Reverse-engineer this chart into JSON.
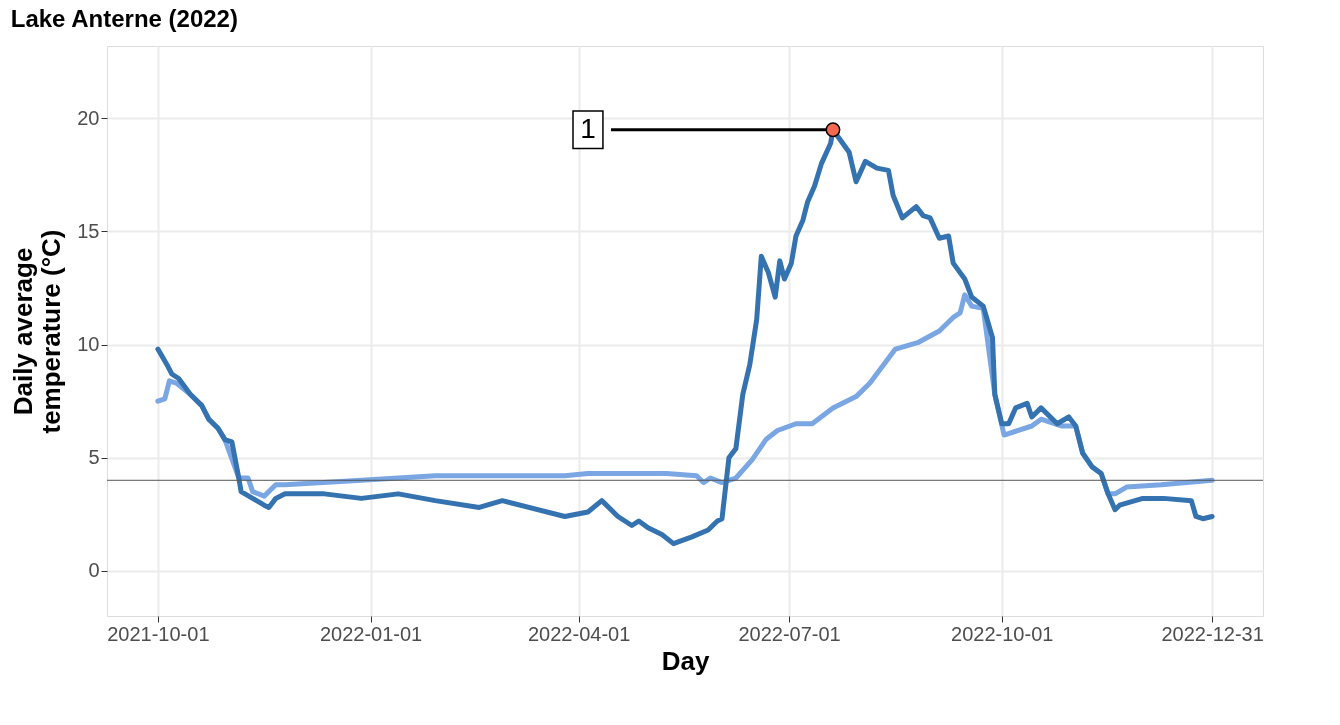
{
  "chart_data": {
    "type": "line",
    "title": "Lake Anterne (2022)",
    "xlabel": "Day",
    "ylabel": "Daily average\ntemperature (°C)",
    "xlim": [
      "2021-09-09",
      "2023-01-22"
    ],
    "xticks": [
      "2021-10-01",
      "2022-01-01",
      "2022-04-01",
      "2022-07-01",
      "2022-10-01",
      "2022-12-31"
    ],
    "ylim": [
      -2,
      23.2
    ],
    "yticks": [
      0,
      5,
      10,
      15,
      20
    ],
    "grid": true,
    "legend": false,
    "marker": "none",
    "line_style": "solid",
    "ref_lines": [
      {
        "axis": "y",
        "value": 4,
        "color": "#555555"
      }
    ],
    "annotations": [
      {
        "text": "1",
        "x": "2022-07-20",
        "y": 19.5
      }
    ],
    "series": [
      {
        "color": "#7aa6e3",
        "x": [
          "2021-10-01",
          "2021-10-04",
          "2021-10-06",
          "2021-10-09",
          "2021-10-15",
          "2021-10-20",
          "2021-10-23",
          "2021-10-27",
          "2021-10-30",
          "2021-11-05",
          "2021-11-09",
          "2021-11-11",
          "2021-11-16",
          "2021-11-21",
          "2021-11-25",
          "2021-12-28",
          "2022-01-29",
          "2022-02-27",
          "2022-03-26",
          "2022-04-05",
          "2022-05-09",
          "2022-05-22",
          "2022-05-25",
          "2022-05-28",
          "2022-06-02",
          "2022-06-08",
          "2022-06-15",
          "2022-06-21",
          "2022-06-26",
          "2022-07-04",
          "2022-07-11",
          "2022-07-20",
          "2022-07-30",
          "2022-08-05",
          "2022-08-16",
          "2022-08-26",
          "2022-09-04",
          "2022-09-10",
          "2022-09-13",
          "2022-09-15",
          "2022-09-18",
          "2022-09-23",
          "2022-09-28",
          "2022-10-02",
          "2022-10-14",
          "2022-10-18",
          "2022-10-27",
          "2022-11-02",
          "2022-11-05",
          "2022-11-09",
          "2022-11-13",
          "2022-11-16",
          "2022-11-19",
          "2022-11-24",
          "2022-12-09",
          "2022-12-31"
        ],
        "values": [
          7.5,
          7.6,
          8.4,
          8.3,
          7.8,
          7.3,
          6.7,
          6.3,
          5.8,
          4.1,
          4.1,
          3.5,
          3.3,
          3.8,
          3.8,
          4.0,
          4.2,
          4.2,
          4.2,
          4.3,
          4.3,
          4.2,
          3.9,
          4.1,
          3.9,
          4.1,
          4.9,
          5.8,
          6.2,
          6.5,
          6.5,
          7.2,
          7.7,
          8.3,
          9.8,
          10.1,
          10.6,
          11.2,
          11.4,
          12.2,
          11.7,
          11.6,
          7.8,
          6.0,
          6.4,
          6.7,
          6.4,
          6.4,
          5.2,
          4.6,
          4.3,
          3.4,
          3.4,
          3.7,
          3.8,
          4.0
        ]
      },
      {
        "color": "#3572b0",
        "x": [
          "2021-10-01",
          "2021-10-05",
          "2021-10-07",
          "2021-10-10",
          "2021-10-15",
          "2021-10-20",
          "2021-10-23",
          "2021-10-27",
          "2021-10-30",
          "2021-11-02",
          "2021-11-05",
          "2021-11-06",
          "2021-11-11",
          "2021-11-16",
          "2021-11-18",
          "2021-11-21",
          "2021-11-25",
          "2021-12-12",
          "2021-12-28",
          "2022-01-13",
          "2022-01-29",
          "2022-02-17",
          "2022-02-27",
          "2022-03-26",
          "2022-04-05",
          "2022-04-11",
          "2022-04-18",
          "2022-04-24",
          "2022-04-27",
          "2022-05-01",
          "2022-05-07",
          "2022-05-12",
          "2022-05-20",
          "2022-05-27",
          "2022-05-31",
          "2022-06-02",
          "2022-06-05",
          "2022-06-08",
          "2022-06-11",
          "2022-06-14",
          "2022-06-17",
          "2022-06-19",
          "2022-06-22",
          "2022-06-25",
          "2022-06-27",
          "2022-06-29",
          "2022-07-02",
          "2022-07-04",
          "2022-07-07",
          "2022-07-09",
          "2022-07-12",
          "2022-07-15",
          "2022-07-19",
          "2022-07-20",
          "2022-07-27",
          "2022-07-30",
          "2022-08-03",
          "2022-08-08",
          "2022-08-13",
          "2022-08-15",
          "2022-08-19",
          "2022-08-25",
          "2022-08-28",
          "2022-08-31",
          "2022-09-04",
          "2022-09-08",
          "2022-09-10",
          "2022-09-15",
          "2022-09-18",
          "2022-09-23",
          "2022-09-27",
          "2022-09-28",
          "2022-10-01",
          "2022-10-04",
          "2022-10-07",
          "2022-10-12",
          "2022-10-14",
          "2022-10-18",
          "2022-10-25",
          "2022-10-30",
          "2022-11-02",
          "2022-11-05",
          "2022-11-09",
          "2022-11-13",
          "2022-11-16",
          "2022-11-19",
          "2022-11-21",
          "2022-12-01",
          "2022-12-10",
          "2022-12-22",
          "2022-12-24",
          "2022-12-27",
          "2022-12-31"
        ],
        "values": [
          9.8,
          9.1,
          8.7,
          8.5,
          7.8,
          7.3,
          6.7,
          6.3,
          5.8,
          5.7,
          4.1,
          3.5,
          3.2,
          2.9,
          2.8,
          3.2,
          3.4,
          3.4,
          3.2,
          3.4,
          3.1,
          2.8,
          3.1,
          2.4,
          2.6,
          3.1,
          2.4,
          2.0,
          2.2,
          1.9,
          1.6,
          1.2,
          1.5,
          1.8,
          2.2,
          2.3,
          5.0,
          5.4,
          7.8,
          9.1,
          11.1,
          13.9,
          13.2,
          12.1,
          13.7,
          12.9,
          13.6,
          14.8,
          15.5,
          16.3,
          17.0,
          18.0,
          18.9,
          19.5,
          18.5,
          17.2,
          18.1,
          17.8,
          17.7,
          16.6,
          15.6,
          16.1,
          15.7,
          15.6,
          14.7,
          14.8,
          13.6,
          12.9,
          12.1,
          11.7,
          10.3,
          7.8,
          6.5,
          6.5,
          7.2,
          7.4,
          6.8,
          7.2,
          6.5,
          6.8,
          6.4,
          5.2,
          4.6,
          4.3,
          3.4,
          2.7,
          2.9,
          3.2,
          3.2,
          3.1,
          2.4,
          2.3,
          2.4
        ]
      }
    ]
  }
}
